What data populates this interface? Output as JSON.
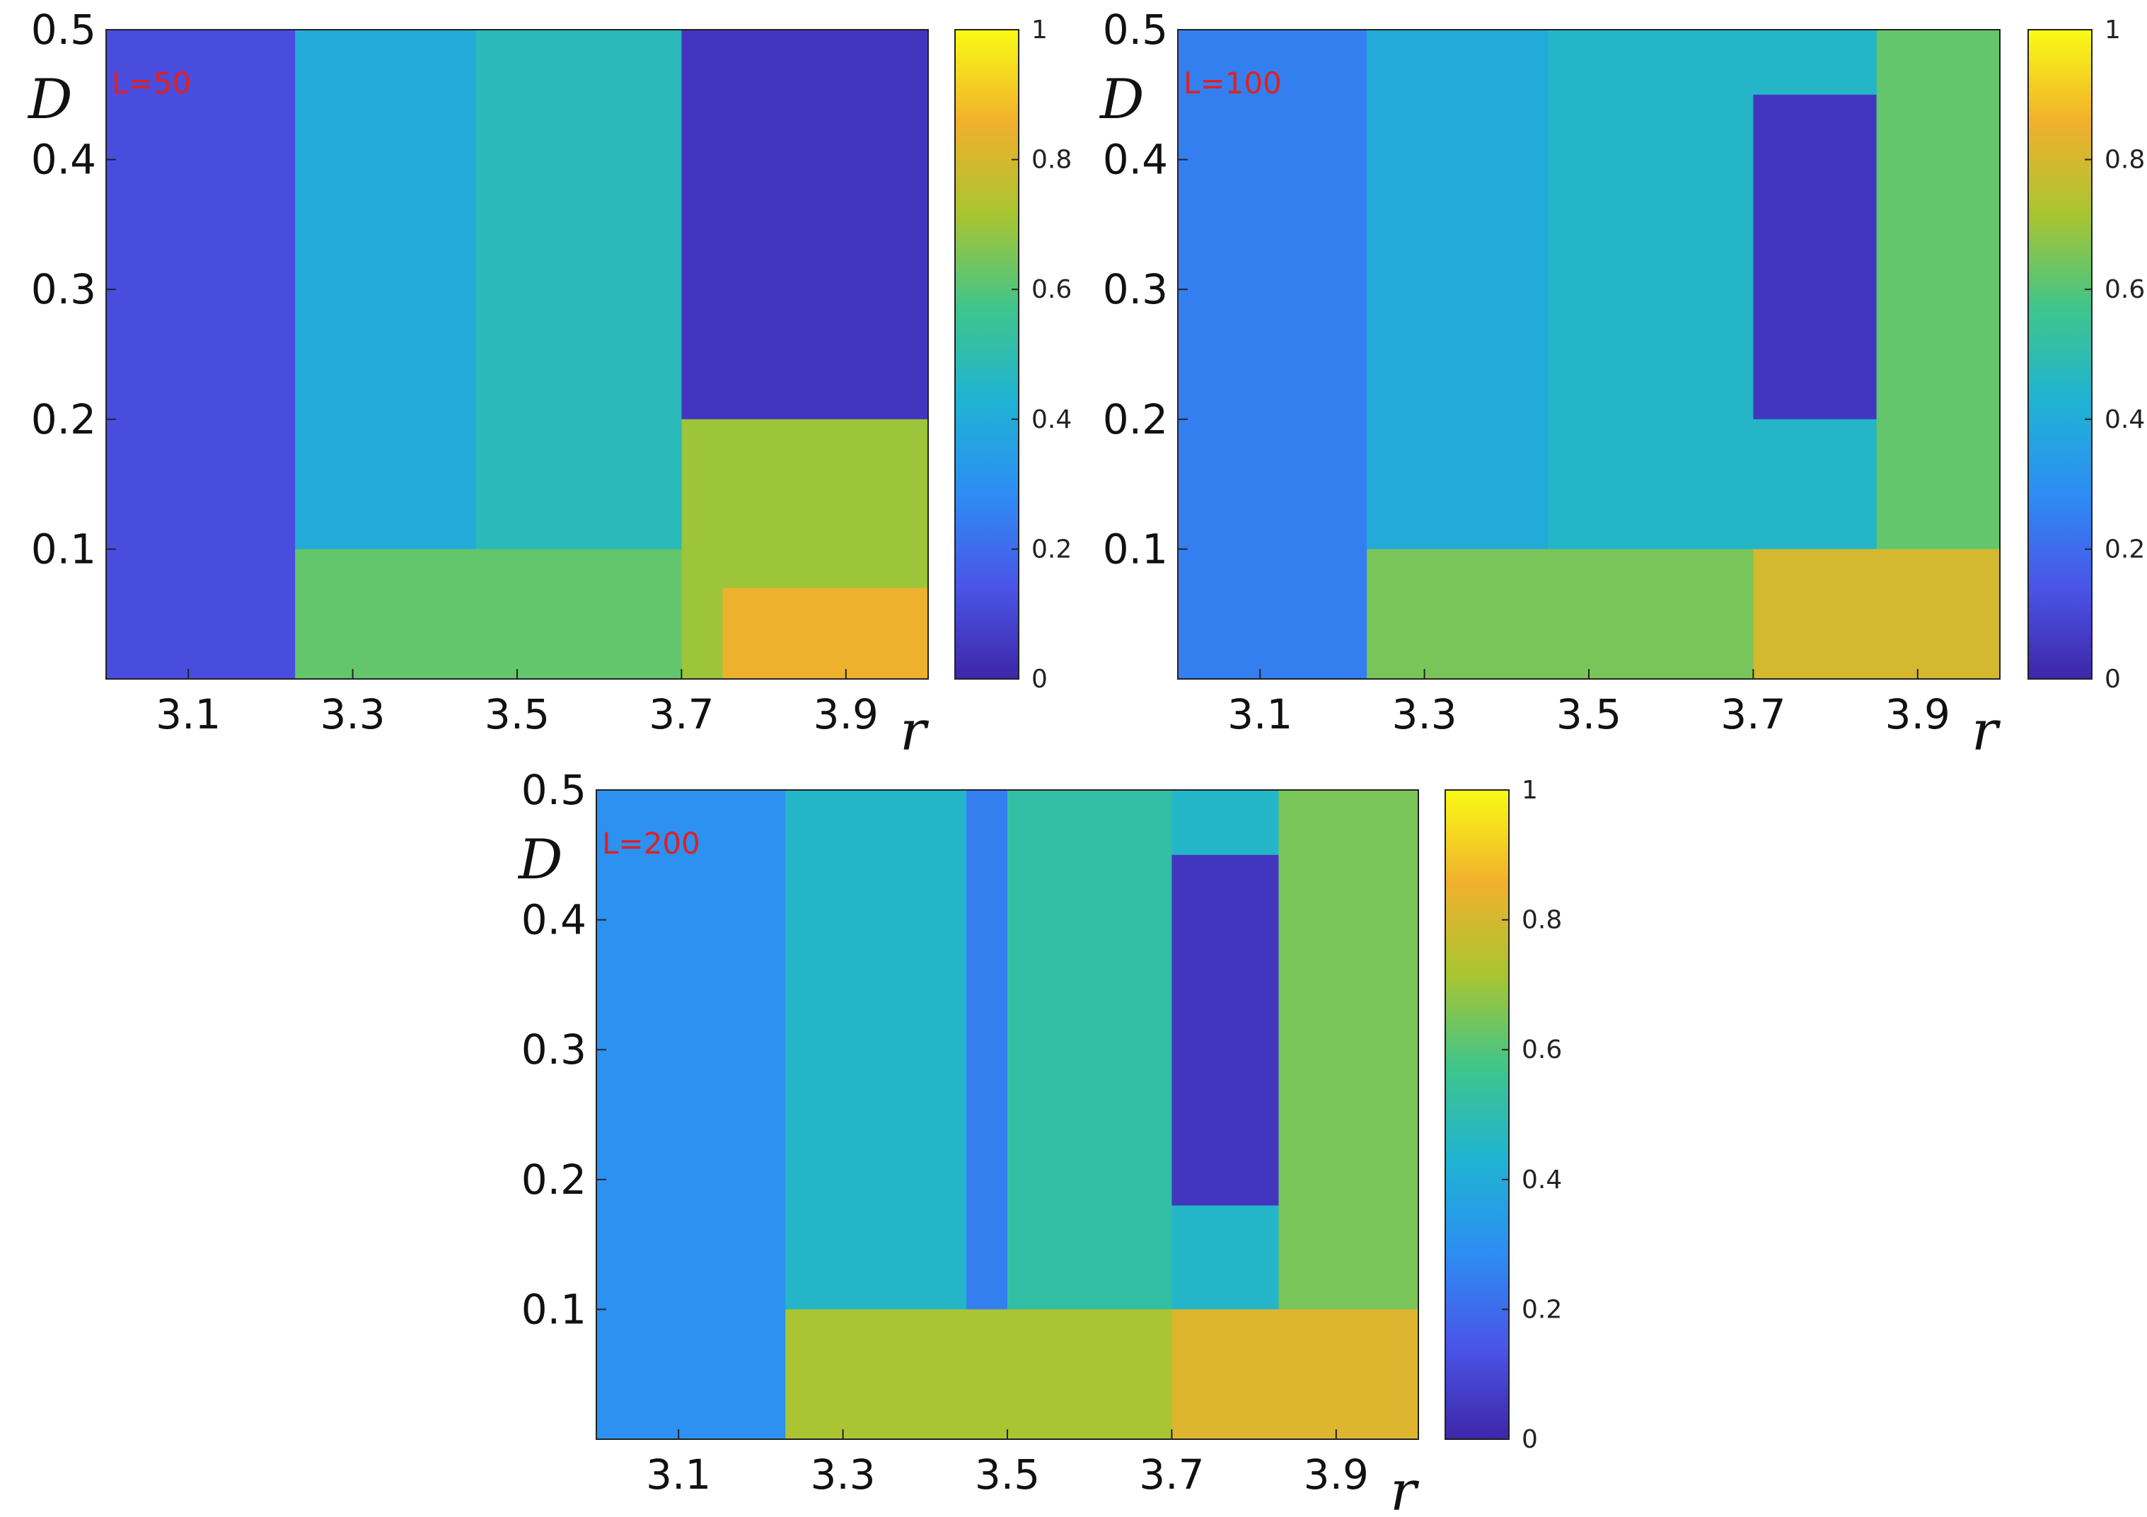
{
  "colorscale": [
    "#3e26a8",
    "#4a55e8",
    "#2d8df3",
    "#1fb3d3",
    "#3fc58b",
    "#a8c531",
    "#f1b02d",
    "#f9fb15"
  ],
  "chart_data": [
    {
      "type": "heatmap",
      "panel_label": "L=50",
      "xlabel": "r",
      "ylabel": "D",
      "xlim": [
        3.0,
        4.0
      ],
      "ylim": [
        0.0,
        0.5
      ],
      "xticks": [
        "3.1",
        "3.3",
        "3.5",
        "3.7",
        "3.9"
      ],
      "yticks": [
        "0.1",
        "0.2",
        "0.3",
        "0.4",
        "0.5"
      ],
      "colorbar": {
        "range": [
          0,
          1
        ],
        "ticks": [
          "0",
          "0.2",
          "0.4",
          "0.6",
          "0.8",
          "1"
        ]
      },
      "regions": [
        {
          "x": [
            3.0,
            3.23
          ],
          "y": [
            0.0,
            0.5
          ],
          "value": 0.12
        },
        {
          "x": [
            3.23,
            3.45
          ],
          "y": [
            0.0,
            0.5
          ],
          "value": 0.4
        },
        {
          "x": [
            3.45,
            3.7
          ],
          "y": [
            0.0,
            0.5
          ],
          "value": 0.48
        },
        {
          "x": [
            3.7,
            4.0
          ],
          "y": [
            0.0,
            0.5
          ],
          "value": 0.05
        },
        {
          "x": [
            3.23,
            3.7
          ],
          "y": [
            0.0,
            0.1
          ],
          "value": 0.62
        },
        {
          "x": [
            3.7,
            4.0
          ],
          "y": [
            0.0,
            0.2
          ],
          "value": 0.7
        },
        {
          "x": [
            3.75,
            4.0
          ],
          "y": [
            0.0,
            0.07
          ],
          "value": 0.85
        }
      ]
    },
    {
      "type": "heatmap",
      "panel_label": "L=100",
      "xlabel": "r",
      "ylabel": "D",
      "xlim": [
        3.0,
        4.0
      ],
      "ylim": [
        0.0,
        0.5
      ],
      "xticks": [
        "3.1",
        "3.3",
        "3.5",
        "3.7",
        "3.9"
      ],
      "yticks": [
        "0.1",
        "0.2",
        "0.3",
        "0.4",
        "0.5"
      ],
      "colorbar": {
        "range": [
          0,
          1
        ],
        "ticks": [
          "0",
          "0.2",
          "0.4",
          "0.6",
          "0.8",
          "1"
        ]
      },
      "regions": [
        {
          "x": [
            3.0,
            3.23
          ],
          "y": [
            0.0,
            0.5
          ],
          "value": 0.25
        },
        {
          "x": [
            3.23,
            3.45
          ],
          "y": [
            0.0,
            0.5
          ],
          "value": 0.4
        },
        {
          "x": [
            3.45,
            3.7
          ],
          "y": [
            0.0,
            0.5
          ],
          "value": 0.45
        },
        {
          "x": [
            3.7,
            3.85
          ],
          "y": [
            0.2,
            0.45
          ],
          "value": 0.05
        },
        {
          "x": [
            3.85,
            4.0
          ],
          "y": [
            0.1,
            0.5
          ],
          "value": 0.62
        },
        {
          "x": [
            3.23,
            3.7
          ],
          "y": [
            0.0,
            0.1
          ],
          "value": 0.65
        },
        {
          "x": [
            3.7,
            4.0
          ],
          "y": [
            0.0,
            0.1
          ],
          "value": 0.8
        }
      ]
    },
    {
      "type": "heatmap",
      "panel_label": "L=200",
      "xlabel": "r",
      "ylabel": "D",
      "xlim": [
        3.0,
        4.0
      ],
      "ylim": [
        0.0,
        0.5
      ],
      "xticks": [
        "3.1",
        "3.3",
        "3.5",
        "3.7",
        "3.9"
      ],
      "yticks": [
        "0.1",
        "0.2",
        "0.3",
        "0.4",
        "0.5"
      ],
      "colorbar": {
        "range": [
          0,
          1
        ],
        "ticks": [
          "0",
          "0.2",
          "0.4",
          "0.6",
          "0.8",
          "1"
        ]
      },
      "regions": [
        {
          "x": [
            3.0,
            3.23
          ],
          "y": [
            0.0,
            0.5
          ],
          "value": 0.3
        },
        {
          "x": [
            3.23,
            3.45
          ],
          "y": [
            0.0,
            0.5
          ],
          "value": 0.45
        },
        {
          "x": [
            3.45,
            3.5
          ],
          "y": [
            0.0,
            0.5
          ],
          "value": 0.25
        },
        {
          "x": [
            3.5,
            3.7
          ],
          "y": [
            0.0,
            0.5
          ],
          "value": 0.52
        },
        {
          "x": [
            3.7,
            3.83
          ],
          "y": [
            0.18,
            0.45
          ],
          "value": 0.05
        },
        {
          "x": [
            3.83,
            4.0
          ],
          "y": [
            0.1,
            0.5
          ],
          "value": 0.65
        },
        {
          "x": [
            3.23,
            3.7
          ],
          "y": [
            0.0,
            0.1
          ],
          "value": 0.72
        },
        {
          "x": [
            3.7,
            4.0
          ],
          "y": [
            0.0,
            0.1
          ],
          "value": 0.82
        }
      ]
    }
  ]
}
